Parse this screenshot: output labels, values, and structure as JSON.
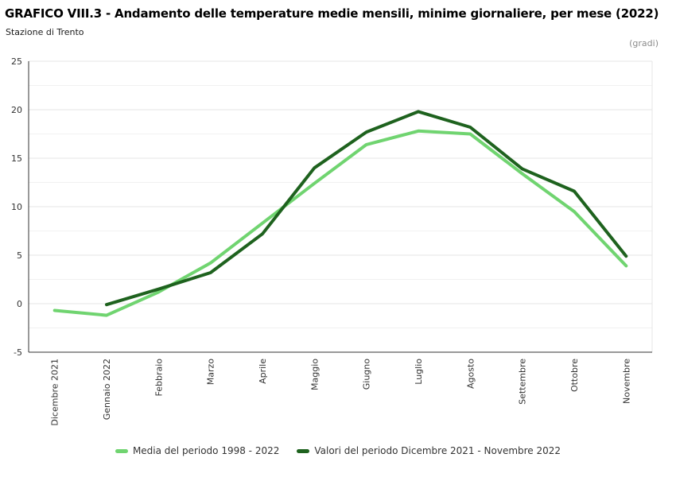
{
  "header": {
    "title": "GRAFICO VIII.3 - Andamento delle temperature medie mensili, minime giornaliere, per mese (2022)",
    "subtitle": "Stazione di Trento",
    "unit_label": "(gradi)"
  },
  "chart_data": {
    "type": "line",
    "title": "GRAFICO VIII.3 - Andamento delle temperature medie mensili, minime giornaliere, per mese (2022)",
    "subtitle": "Stazione di Trento",
    "ylabel": "(gradi)",
    "categories": [
      "Dicembre 2021",
      "Gennaio 2022",
      "Febbraio",
      "Marzo",
      "Aprile",
      "Maggio",
      "Giugno",
      "Luglio",
      "Agosto",
      "Settembre",
      "Ottobre",
      "Novembre"
    ],
    "series": [
      {
        "name": "Media del periodo 1998 - 2022",
        "color": "#70d470",
        "values": [
          -0.7,
          -1.2,
          1.2,
          4.2,
          8.3,
          12.4,
          16.4,
          17.8,
          17.5,
          13.4,
          9.5,
          3.9
        ]
      },
      {
        "name": "Valori del periodo Dicembre 2021 - Novembre 2022",
        "color": "#1e621e",
        "values": [
          null,
          -0.1,
          1.5,
          3.2,
          7.2,
          14.0,
          17.7,
          19.8,
          18.2,
          13.9,
          11.6,
          4.9
        ]
      }
    ],
    "ylim": [
      -5,
      25
    ],
    "ytick_interval": 5,
    "minor_tick_interval": 2.5,
    "ytick_labels": [
      "-5",
      "0",
      "5",
      "10",
      "15",
      "20",
      "25"
    ],
    "grid": true,
    "grid_color": "#e4e4e4",
    "minor_grid_color": "#f1f1f1",
    "axis_color": "#333333",
    "plot_border_color": "#e6e6e6",
    "legend_position": "bottom"
  }
}
